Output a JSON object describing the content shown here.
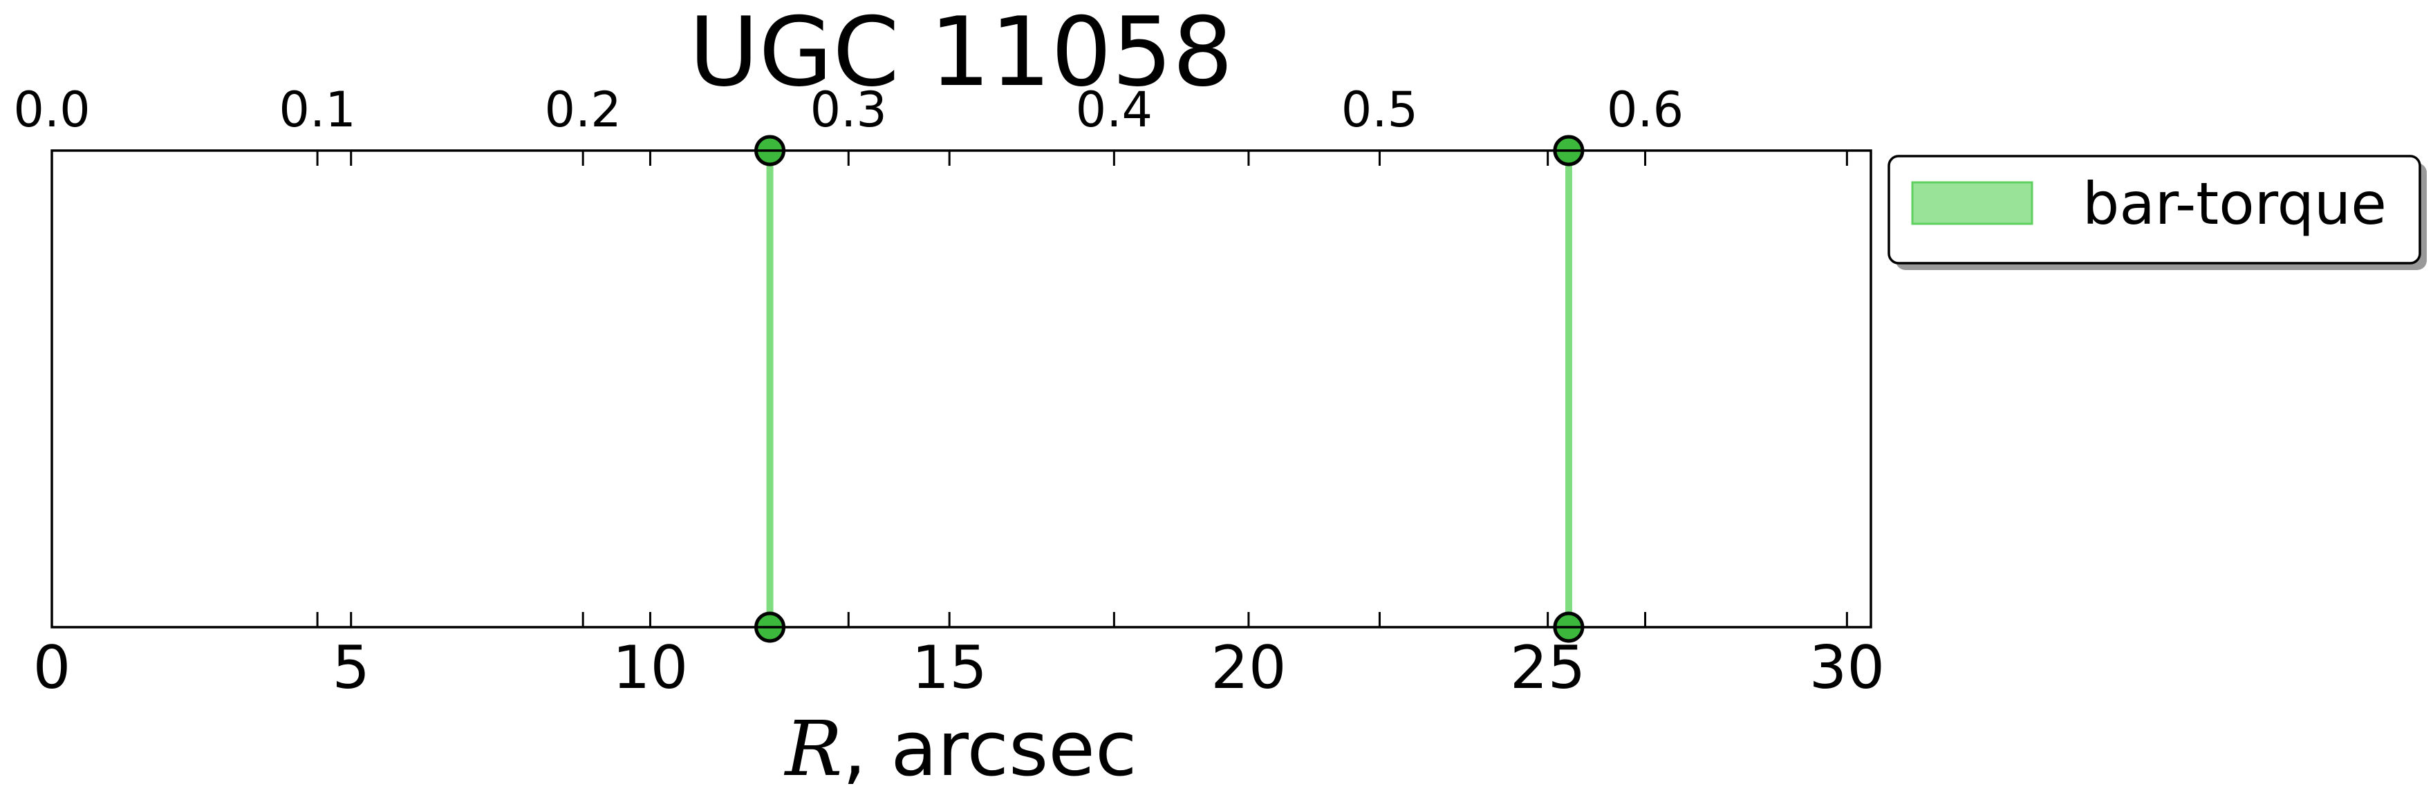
{
  "chart_data": {
    "type": "line",
    "title": "UGC 11058",
    "xlabel_symbol": "R",
    "xlabel_rest": ", arcsec",
    "xlim": [
      0,
      30.4
    ],
    "xticks": [
      0,
      5,
      10,
      15,
      20,
      25,
      30
    ],
    "xticklabels": [
      "0",
      "5",
      "10",
      "15",
      "20",
      "25",
      "30"
    ],
    "top_xlim": [
      0,
      0.685
    ],
    "top_xticks": [
      0.0,
      0.1,
      0.2,
      0.3,
      0.4,
      0.5,
      0.6
    ],
    "top_xticklabels": [
      "0.0",
      "0.1",
      "0.2",
      "0.3",
      "0.4",
      "0.5",
      "0.6"
    ],
    "yticks_visible": false,
    "grid": false,
    "legend_placement": "outside-upper-right",
    "series": [
      {
        "name": "bar-torque",
        "color": "#7fdc7f",
        "marker_color": "#3cb83c",
        "x_values": [
          12.0,
          25.35
        ]
      }
    ]
  }
}
